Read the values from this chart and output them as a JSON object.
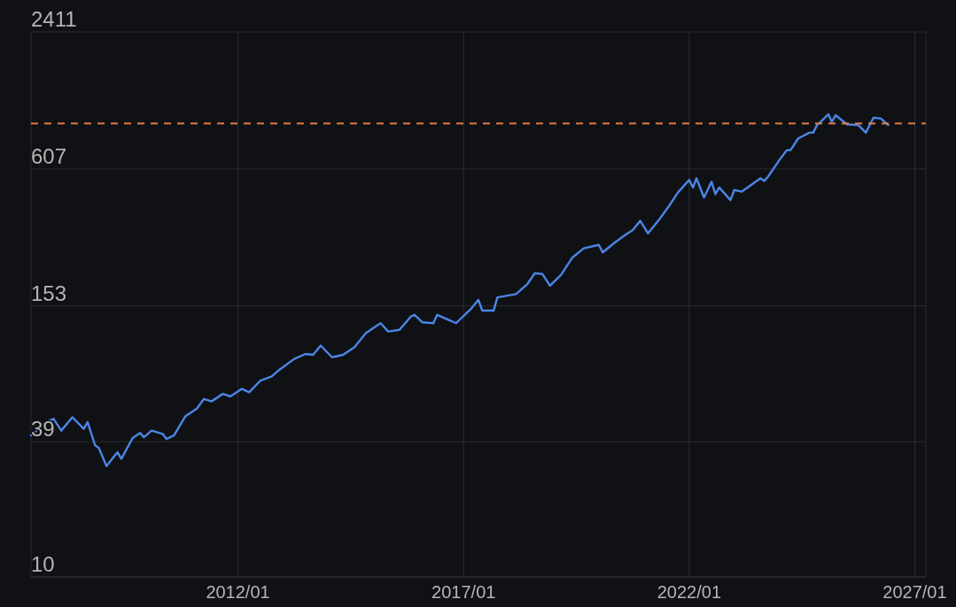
{
  "chart_data": {
    "type": "line",
    "log": "y",
    "grid": true,
    "marker": "none",
    "line_style": "solid",
    "xlim": [
      "2007-06",
      "2027-04"
    ],
    "xticks": [
      {
        "value": "2012-01",
        "label": "2012/01"
      },
      {
        "value": "2017-01",
        "label": "2017/01"
      },
      {
        "value": "2022-01",
        "label": "2022/01"
      },
      {
        "value": "2027-01",
        "label": "2027/01"
      }
    ],
    "ylim": [
      10,
      2411
    ],
    "yticks": [
      10,
      39,
      153,
      607,
      2411
    ],
    "ref_lines": [
      {
        "axis": "y",
        "value": 960,
        "color": "#e27d45",
        "line_style": "dashed"
      }
    ],
    "x": [
      "2007-06",
      "2007-10",
      "2007-12",
      "2008-02",
      "2008-05",
      "2008-08",
      "2008-09",
      "2008-11",
      "2008-12",
      "2009-02",
      "2009-05",
      "2009-06",
      "2009-09",
      "2009-11",
      "2009-12",
      "2010-02",
      "2010-05",
      "2010-06",
      "2010-08",
      "2010-11",
      "2011-02",
      "2011-04",
      "2011-06",
      "2011-09",
      "2011-11",
      "2012-02",
      "2012-04",
      "2012-07",
      "2012-10",
      "2012-12",
      "2013-04",
      "2013-07",
      "2013-09",
      "2013-11",
      "2014-02",
      "2014-05",
      "2014-08",
      "2014-11",
      "2015-03",
      "2015-05",
      "2015-08",
      "2015-11",
      "2015-12",
      "2016-02",
      "2016-05",
      "2016-06",
      "2016-11",
      "2017-03",
      "2017-05",
      "2017-06",
      "2017-09",
      "2017-10",
      "2018-03",
      "2018-06",
      "2018-08",
      "2018-10",
      "2018-12",
      "2019-03",
      "2019-06",
      "2019-09",
      "2020-01",
      "2020-02",
      "2020-05",
      "2020-08",
      "2020-10",
      "2020-12",
      "2021-02",
      "2021-05",
      "2021-08",
      "2021-10",
      "2022-01",
      "2022-02",
      "2022-03",
      "2022-05",
      "2022-07",
      "2022-08",
      "2022-09",
      "2022-12",
      "2023-01",
      "2023-03",
      "2023-08",
      "2023-09",
      "2023-10",
      "2024-01",
      "2024-03",
      "2024-04",
      "2024-06",
      "2024-09",
      "2024-10",
      "2024-11",
      "2024-12",
      "2025-02",
      "2025-03",
      "2025-04",
      "2025-07",
      "2025-10",
      "2025-12",
      "2026-02",
      "2026-04",
      "2026-06"
    ],
    "series": [
      {
        "color": "#4a86e8",
        "values": [
          41.5,
          47.5,
          49.1,
          43.6,
          49.9,
          44.4,
          47.5,
          37.6,
          36.6,
          30.5,
          35.1,
          32.8,
          40.5,
          42.6,
          40.8,
          43.6,
          42.2,
          40.1,
          41.5,
          50.3,
          54.3,
          60.0,
          58.5,
          63.1,
          61.5,
          66.4,
          64.1,
          72.1,
          75.2,
          80.4,
          89.7,
          94.3,
          93.5,
          102.6,
          91.2,
          93.5,
          100.9,
          116.2,
          128.5,
          118.2,
          120.2,
          137.4,
          139.8,
          129.7,
          128.5,
          139.8,
          128.5,
          148.3,
          162.6,
          145.8,
          145.8,
          166.6,
          172.3,
          190.5,
          212.5,
          210.7,
          187.4,
          208.9,
          249.0,
          273.0,
          282.5,
          261.9,
          287.1,
          312.4,
          328.3,
          359.8,
          317.5,
          363.1,
          425.6,
          478.6,
          543.3,
          503.5,
          552.1,
          455.0,
          533.5,
          470.9,
          503.5,
          443.6,
          491.0,
          482.6,
          552.1,
          538.3,
          561.0,
          663.5,
          733.3,
          733.3,
          824.6,
          874.6,
          874.6,
          943.4,
          974.9,
          1052,
          974.9,
          1042,
          950.6,
          943.4,
          874.6,
          1016,
          1009,
          943.4
        ]
      }
    ]
  }
}
